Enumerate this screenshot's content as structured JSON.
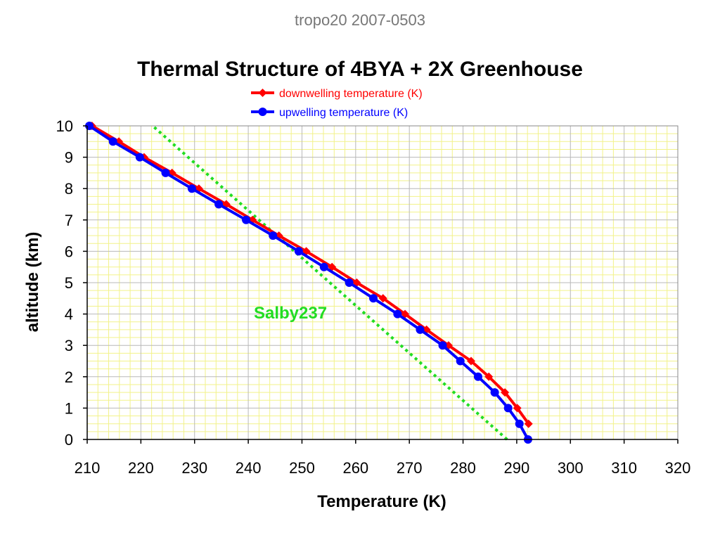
{
  "header": {
    "caption": "tropo20 2007-0503"
  },
  "chart_data": {
    "type": "line",
    "title": "Thermal Structure of 4BYA + 2X Greenhouse",
    "xlabel": "Temperature (K)",
    "ylabel": "altitude (km)",
    "xlim": [
      210,
      320
    ],
    "ylim": [
      0,
      10
    ],
    "xticks": [
      "210",
      "220",
      "230",
      "240",
      "250",
      "260",
      "270",
      "280",
      "290",
      "300",
      "310",
      "320"
    ],
    "yticks": [
      "0",
      "1",
      "2",
      "3",
      "4",
      "5",
      "6",
      "7",
      "8",
      "9",
      "10"
    ],
    "grid": true,
    "legend_position": "top-center",
    "series": [
      {
        "name": "downwelling temperature (K)",
        "color": "#ff0000",
        "marker": "diamond",
        "x": [
          292.2,
          290.1,
          287.8,
          284.8,
          281.5,
          277.3,
          273.2,
          269.2,
          265.1,
          260.2,
          255.6,
          250.8,
          245.7,
          240.8,
          235.9,
          230.8,
          225.8,
          220.6,
          215.9,
          210.9
        ],
        "y": [
          0.5,
          1.0,
          1.5,
          2.0,
          2.5,
          3.0,
          3.5,
          4.0,
          4.5,
          5.0,
          5.5,
          6.0,
          6.5,
          7.0,
          7.5,
          8.0,
          8.5,
          9.0,
          9.5,
          10.0
        ]
      },
      {
        "name": "upwelling temperature (K)",
        "color": "#0000ff",
        "marker": "circle",
        "x": [
          292.1,
          290.5,
          288.4,
          285.9,
          282.8,
          279.5,
          276.2,
          272.0,
          267.8,
          263.3,
          258.8,
          254.1,
          249.4,
          244.6,
          239.6,
          234.5,
          229.5,
          224.6,
          219.8,
          214.8,
          210.4
        ],
        "y": [
          0.0,
          0.5,
          1.0,
          1.5,
          2.0,
          2.5,
          3.0,
          3.5,
          4.0,
          4.5,
          5.0,
          5.5,
          6.0,
          6.5,
          7.0,
          7.5,
          8.0,
          8.5,
          9.0,
          9.5,
          10.0
        ]
      }
    ],
    "reference_line": {
      "label": "Salby237",
      "color": "#22dd22",
      "style": "dotted",
      "x": [
        288.2,
        222.2
      ],
      "y": [
        0.0,
        10.0
      ]
    }
  }
}
